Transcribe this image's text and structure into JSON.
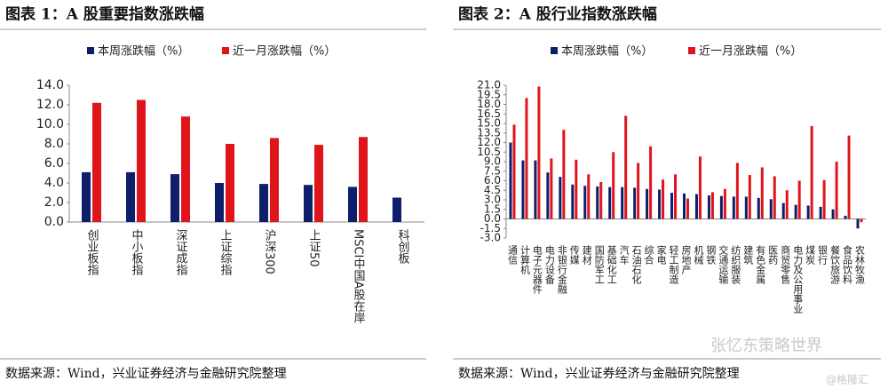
{
  "chart_data": [
    {
      "type": "bar",
      "title": "图表 1：A 股重要指数涨跌幅",
      "source": "数据来源：Wind，兴业证券经济与金融研究院整理",
      "categories": [
        "创业板指",
        "中小板指",
        "深证成指",
        "上证综指",
        "沪深300",
        "上证50",
        "MSCI中国A股在岸",
        "科创板"
      ],
      "series": [
        {
          "name": "本周涨跌幅（%）",
          "color": "#0d1f6b",
          "values": [
            5.1,
            5.1,
            4.9,
            4.0,
            3.9,
            3.8,
            3.6,
            2.5
          ]
        },
        {
          "name": "近一月涨跌幅（%）",
          "color": "#e0141b",
          "values": [
            12.2,
            12.5,
            10.8,
            8.0,
            8.6,
            7.9,
            8.7,
            null
          ]
        }
      ],
      "ylim": [
        0,
        14
      ],
      "yticks": [
        {
          "value": 0,
          "label": "0.0"
        },
        {
          "value": 2,
          "label": "2.0"
        },
        {
          "value": 4,
          "label": "4.0"
        },
        {
          "value": 6,
          "label": "6.0"
        },
        {
          "value": 8,
          "label": "8.0"
        },
        {
          "value": 10,
          "label": "10.0"
        },
        {
          "value": 12,
          "label": "12.0"
        },
        {
          "value": 14,
          "label": "14.0"
        }
      ],
      "grid": false
    },
    {
      "type": "bar",
      "title": "图表 2：A 股行业指数涨跌幅",
      "source": "数据来源：Wind，兴业证券经济与金融研究院整理",
      "categories": [
        "通信",
        "计算机",
        "电子元器件",
        "电力设备",
        "非银行金融",
        "传媒",
        "建材",
        "国防军工",
        "基础化工",
        "汽车",
        "石油石化",
        "综合",
        "家电",
        "轻工制造",
        "房地产",
        "机械",
        "钢铁",
        "交通运输",
        "纺织服装",
        "建筑",
        "有色金属",
        "医药",
        "商贸零售",
        "电力及公用事业",
        "煤炭",
        "银行",
        "餐饮旅游",
        "食品饮料",
        "农林牧渔"
      ],
      "series": [
        {
          "name": "本周涨跌幅（%）",
          "color": "#0d1f6b",
          "values": [
            12.0,
            9.2,
            9.2,
            7.3,
            6.6,
            5.4,
            5.2,
            5.1,
            5.0,
            5.0,
            4.9,
            4.7,
            4.6,
            4.1,
            4.0,
            3.9,
            3.7,
            3.6,
            3.5,
            3.5,
            3.3,
            3.1,
            2.5,
            2.2,
            2.1,
            1.9,
            1.5,
            0.5,
            -1.5
          ]
        },
        {
          "name": "近一月涨跌幅（%）",
          "color": "#e0141b",
          "values": [
            14.8,
            19.0,
            20.8,
            9.5,
            14.0,
            9.3,
            7.0,
            5.8,
            10.5,
            16.2,
            8.8,
            11.4,
            6.2,
            7.0,
            3.2,
            9.8,
            4.2,
            4.7,
            8.8,
            6.9,
            8.1,
            6.7,
            4.5,
            6.0,
            14.6,
            6.1,
            9.0,
            13.1,
            -0.5
          ]
        }
      ],
      "ylim": [
        -3,
        21
      ],
      "yticks": [
        {
          "value": -3,
          "label": "-3.0"
        },
        {
          "value": -1.5,
          "label": "-1.5"
        },
        {
          "value": 0,
          "label": "0.0"
        },
        {
          "value": 1.5,
          "label": "1.5"
        },
        {
          "value": 3,
          "label": "3.0"
        },
        {
          "value": 4.5,
          "label": "4.5"
        },
        {
          "value": 6,
          "label": "6.0"
        },
        {
          "value": 7.5,
          "label": "7.5"
        },
        {
          "value": 9,
          "label": "9.0"
        },
        {
          "value": 10.5,
          "label": "10.5"
        },
        {
          "value": 12,
          "label": "12.0"
        },
        {
          "value": 13.5,
          "label": "13.5"
        },
        {
          "value": 15,
          "label": "15.0"
        },
        {
          "value": 16.5,
          "label": "16.5"
        },
        {
          "value": 18,
          "label": "18.0"
        },
        {
          "value": 19.5,
          "label": "19.5"
        },
        {
          "value": 21,
          "label": "21.0"
        }
      ],
      "grid": false
    }
  ],
  "watermark": [
    "张忆东策略世界",
    "@格隆汇"
  ]
}
